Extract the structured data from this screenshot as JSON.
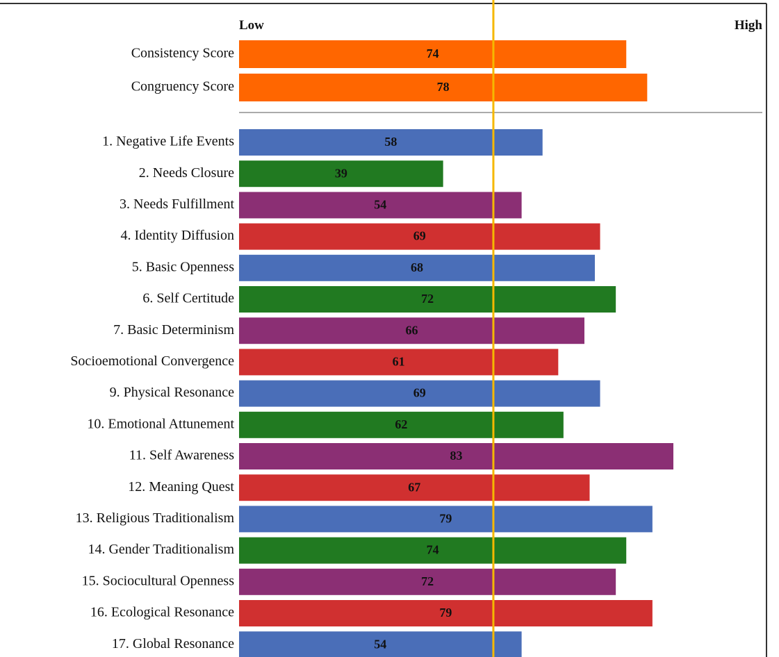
{
  "chart_data": [
    {
      "type": "barh",
      "low_label": "Low",
      "high_label": "High",
      "categories": [
        "Consistency Score",
        "Congruency Score"
      ],
      "values": [
        74,
        78
      ],
      "colors": [
        "#ff6600",
        "#ff6600"
      ],
      "xlim": [
        0,
        100
      ],
      "reference_line": 48.6,
      "reference_color": "#f5b800"
    },
    {
      "type": "barh",
      "categories": [
        "1. Negative Life Events",
        "2. Needs Closure",
        "3. Needs Fulfillment",
        "4. Identity Diffusion",
        "5. Basic Openness",
        "6. Self Certitude",
        "7. Basic Determinism",
        "Socioemotional Convergence",
        "9. Physical Resonance",
        "10. Emotional Attunement",
        "11. Self Awareness",
        "12. Meaning Quest",
        "13. Religious Traditionalism",
        "14. Gender Traditionalism",
        "15. Sociocultural Openness",
        "16. Ecological Resonance",
        "17. Global Resonance"
      ],
      "values": [
        58,
        39,
        54,
        69,
        68,
        72,
        66,
        61,
        69,
        62,
        83,
        67,
        79,
        74,
        72,
        79,
        54
      ],
      "colors": [
        "#4a6eb8",
        "#217a21",
        "#8b2f74",
        "#d03030",
        "#4a6eb8",
        "#217a21",
        "#8b2f74",
        "#d03030",
        "#4a6eb8",
        "#217a21",
        "#8b2f74",
        "#d03030",
        "#4a6eb8",
        "#217a21",
        "#8b2f74",
        "#d03030",
        "#4a6eb8"
      ],
      "xlim": [
        0,
        100
      ]
    }
  ]
}
